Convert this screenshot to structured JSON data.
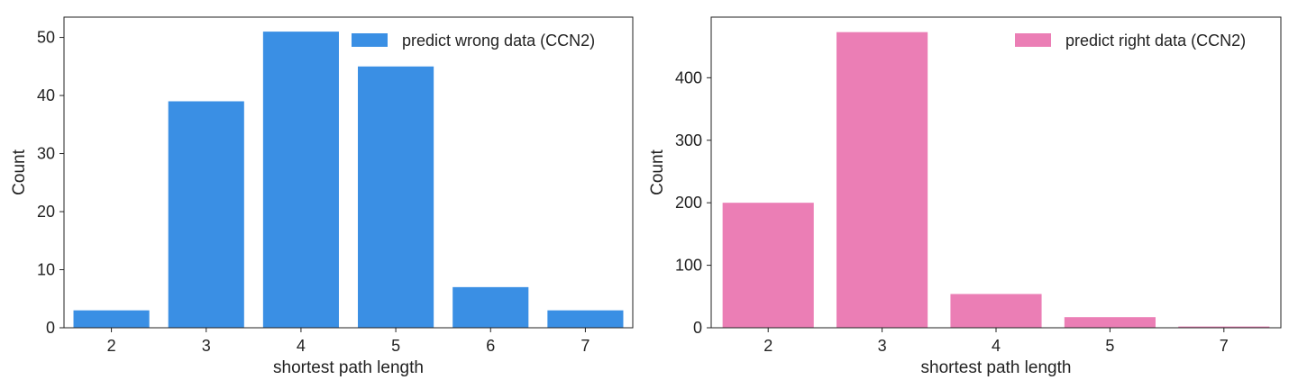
{
  "chart_data": [
    {
      "type": "bar",
      "categories": [
        "2",
        "3",
        "4",
        "5",
        "6",
        "7"
      ],
      "values": [
        3,
        39,
        51,
        45,
        7,
        3
      ],
      "series": [
        {
          "name": "predict wrong data (CCN2)",
          "values": [
            3,
            39,
            51,
            45,
            7,
            3
          ]
        }
      ],
      "xlabel": "shortest path length",
      "ylabel": "Count",
      "ylim": [
        0,
        53.5
      ],
      "yticks": [
        0,
        10,
        20,
        30,
        40,
        50
      ],
      "color": "#3A8FE4",
      "legend": "upper right",
      "grid": false
    },
    {
      "type": "bar",
      "categories": [
        "2",
        "3",
        "4",
        "5",
        "7"
      ],
      "values": [
        200,
        473,
        54,
        17,
        2
      ],
      "series": [
        {
          "name": "predict right data (CCN2)",
          "values": [
            200,
            473,
            54,
            17,
            2
          ]
        }
      ],
      "xlabel": "shortest path length",
      "ylabel": "Count",
      "ylim": [
        0,
        497
      ],
      "yticks": [
        0,
        100,
        200,
        300,
        400
      ],
      "color": "#EB7EB5",
      "legend": "upper right",
      "grid": false
    }
  ]
}
